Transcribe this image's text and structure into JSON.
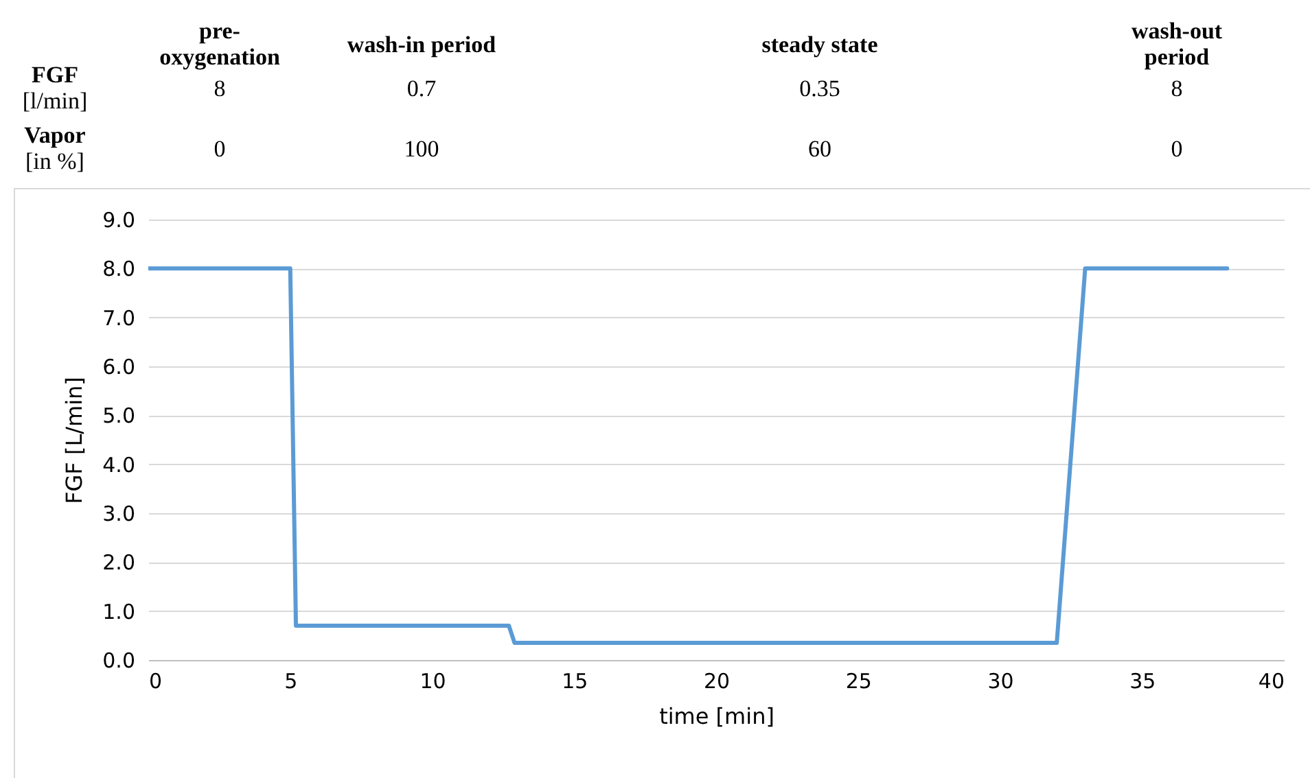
{
  "chart_data": {
    "type": "line",
    "xlabel": "time [min]",
    "ylabel": "FGF [L/min]",
    "x": [
      0,
      5,
      5.2,
      12.7,
      12.9,
      32,
      33,
      38
    ],
    "series": [
      {
        "color": "#5b9bd5",
        "values": [
          8,
          8,
          0.7,
          0.7,
          0.35,
          0.35,
          8,
          8
        ]
      }
    ],
    "xlim": [
      0,
      40
    ],
    "xticks": [
      0,
      5,
      10,
      15,
      20,
      25,
      30,
      35,
      40
    ],
    "ylim": [
      0,
      9
    ],
    "yticks": [
      {
        "value": 0,
        "label": "0.0"
      },
      {
        "value": 1,
        "label": "1.0"
      },
      {
        "value": 2,
        "label": "2.0"
      },
      {
        "value": 3,
        "label": "3.0"
      },
      {
        "value": 4,
        "label": "4.0"
      },
      {
        "value": 5,
        "label": "5.0"
      },
      {
        "value": 6,
        "label": "6.0"
      },
      {
        "value": 7,
        "label": "7.0"
      },
      {
        "value": 8,
        "label": "8.0"
      },
      {
        "value": 9,
        "label": "9.0"
      }
    ],
    "grid": "y",
    "marker": "none",
    "line_style": "solid",
    "annotations": [
      "pre-\noxygenation",
      "wash-in period",
      "steady state",
      "wash-out\nperiod",
      "FGF\n[l/min]",
      "8",
      "0.7",
      "0.35",
      "8",
      "Vapor\n[in %]",
      "0",
      "100",
      "60",
      "0"
    ]
  }
}
